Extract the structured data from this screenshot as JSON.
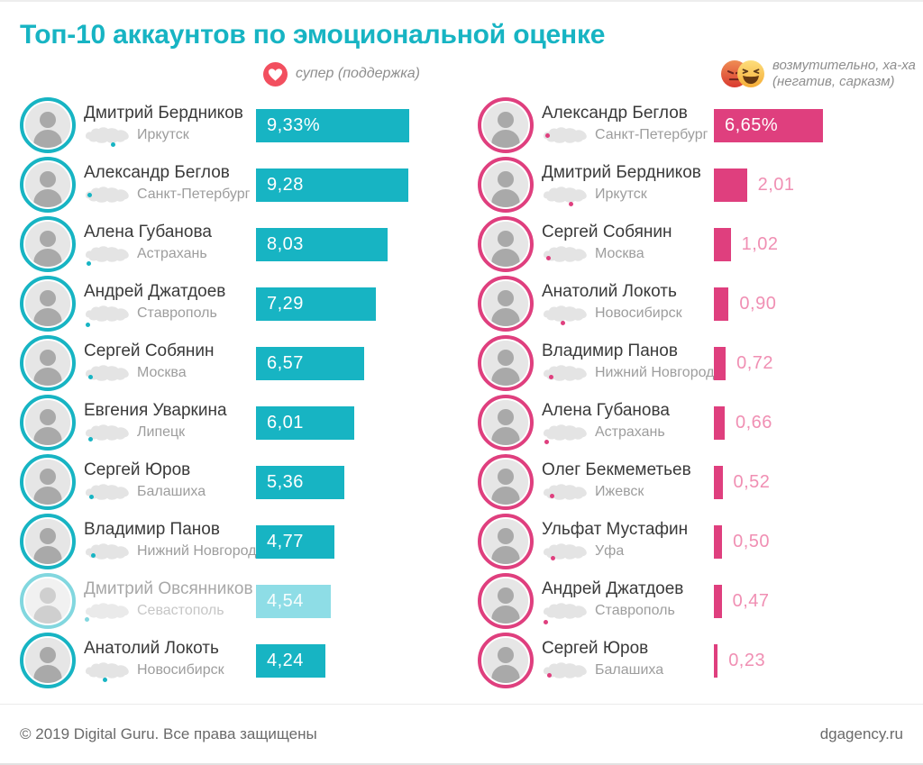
{
  "title": "Топ-10 аккаунтов по эмоциональной оценке",
  "legends": {
    "support": {
      "icon": "love-reaction",
      "label": "супер (поддержка)"
    },
    "negative": {
      "icons": [
        "angry-reaction",
        "haha-reaction"
      ],
      "label_line1": "возмутительно, ха-ха",
      "label_line2": "(негатив, сарказм)"
    }
  },
  "footer": {
    "copyright": "© 2019 Digital Guru. Все права защищены",
    "site": "dgagency.ru"
  },
  "colors": {
    "title": "#17b4c3",
    "teal": "#17b4c3",
    "teal_muted_bar": "#8edde6",
    "teal_muted_ring": "#82d7df",
    "pink": "#df3f7e",
    "pink_label_light": "#f08fb3",
    "name_text": "#3a3a3a",
    "city_text": "#9d9d9d",
    "map_fill": "#e4e4e4",
    "footer_text": "#6a6a6a"
  },
  "chart_data": [
    {
      "type": "bar",
      "title": "супер (поддержка)",
      "unit": "%",
      "color": "#17b4c3",
      "color_muted": "#8edde6",
      "ring_muted": "#82d7df",
      "label_color": "#8edde6",
      "xlim": [
        0,
        10
      ],
      "rows": [
        {
          "name": "Дмитрий Бердников",
          "city": "Иркутск",
          "value": 9.33,
          "label": "9,33%",
          "muted": false,
          "dot": [
            58,
            82
          ]
        },
        {
          "name": "Александр Беглов",
          "city": "Санкт-Петербург",
          "value": 9.28,
          "label": "9,28",
          "muted": false,
          "dot": [
            7,
            40
          ]
        },
        {
          "name": "Алена Губанова",
          "city": "Астрахань",
          "value": 8.03,
          "label": "8,03",
          "muted": false,
          "dot": [
            6,
            85
          ]
        },
        {
          "name": "Андрей Джатдоев",
          "city": "Ставрополь",
          "value": 7.29,
          "label": "7,29",
          "muted": false,
          "dot": [
            4,
            90
          ]
        },
        {
          "name": "Сергей Собянин",
          "city": "Москва",
          "value": 6.57,
          "label": "6,57",
          "muted": false,
          "dot": [
            10,
            60
          ]
        },
        {
          "name": "Евгения Уваркина",
          "city": "Липецк",
          "value": 6.01,
          "label": "6,01",
          "muted": false,
          "dot": [
            9,
            70
          ]
        },
        {
          "name": "Сергей Юров",
          "city": "Балашиха",
          "value": 5.36,
          "label": "5,36",
          "muted": false,
          "dot": [
            12,
            62
          ]
        },
        {
          "name": "Владимир Панов",
          "city": "Нижний Новгород",
          "value": 4.77,
          "label": "4,77",
          "muted": false,
          "dot": [
            15,
            57
          ]
        },
        {
          "name": "Дмитрий Овсянников",
          "city": "Севастополь",
          "value": 4.54,
          "label": "4,54",
          "muted": true,
          "dot": [
            2,
            78
          ]
        },
        {
          "name": "Анатолий Локоть",
          "city": "Новосибирск",
          "value": 4.24,
          "label": "4,24",
          "muted": false,
          "dot": [
            41,
            84
          ]
        }
      ]
    },
    {
      "type": "bar",
      "title": "возмутительно, ха-ха (негатив, сарказм)",
      "unit": "%",
      "color": "#df3f7e",
      "color_muted": "#df3f7e",
      "ring_muted": "#df3f7e",
      "label_color": "#f08fb3",
      "xlim": [
        0,
        10
      ],
      "rows": [
        {
          "name": "Александр Беглов",
          "city": "Санкт-Петербург",
          "value": 6.65,
          "label": "6,65%",
          "muted": false,
          "dot": [
            7,
            40
          ]
        },
        {
          "name": "Дмитрий Бердников",
          "city": "Иркутск",
          "value": 2.01,
          "label": "2,01",
          "muted": false,
          "dot": [
            58,
            82
          ]
        },
        {
          "name": "Сергей Собянин",
          "city": "Москва",
          "value": 1.02,
          "label": "1,02",
          "muted": false,
          "dot": [
            10,
            60
          ]
        },
        {
          "name": "Анатолий Локоть",
          "city": "Новосибирск",
          "value": 0.9,
          "label": "0,90",
          "muted": false,
          "dot": [
            41,
            84
          ]
        },
        {
          "name": "Владимир Панов",
          "city": "Нижний Новгород",
          "value": 0.72,
          "label": "0,72",
          "muted": false,
          "dot": [
            15,
            57
          ]
        },
        {
          "name": "Алена Губанова",
          "city": "Астрахань",
          "value": 0.66,
          "label": "0,66",
          "muted": false,
          "dot": [
            6,
            85
          ]
        },
        {
          "name": "Олег Бекмеметьев",
          "city": "Ижевск",
          "value": 0.52,
          "label": "0,52",
          "muted": false,
          "dot": [
            18,
            60
          ]
        },
        {
          "name": "Ульфат Мустафин",
          "city": "Уфа",
          "value": 0.5,
          "label": "0,50",
          "muted": false,
          "dot": [
            19,
            70
          ]
        },
        {
          "name": "Андрей Джатдоев",
          "city": "Ставрополь",
          "value": 0.47,
          "label": "0,47",
          "muted": false,
          "dot": [
            4,
            90
          ]
        },
        {
          "name": "Сергей Юров",
          "city": "Балашиха",
          "value": 0.23,
          "label": "0,23",
          "muted": false,
          "dot": [
            12,
            62
          ]
        }
      ]
    }
  ]
}
